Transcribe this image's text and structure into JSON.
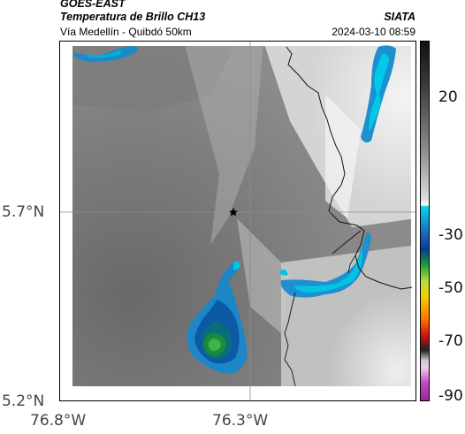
{
  "header": {
    "satellite": "GOES-EAST",
    "product": "Temperatura de Brillo CH13",
    "route": "Vía Medellín - Quibdó 50km",
    "organization": "SIATA",
    "datetime": "2024-03-10 08:59"
  },
  "map": {
    "latitude_labels": [
      "5.7°N",
      "5.2°N"
    ],
    "longitude_labels": [
      "76.8°W",
      "76.3°W"
    ],
    "marker": "star-marker"
  },
  "colorbar": {
    "tick_labels": [
      "20",
      "-30",
      "-50",
      "-70",
      "-90"
    ]
  }
}
